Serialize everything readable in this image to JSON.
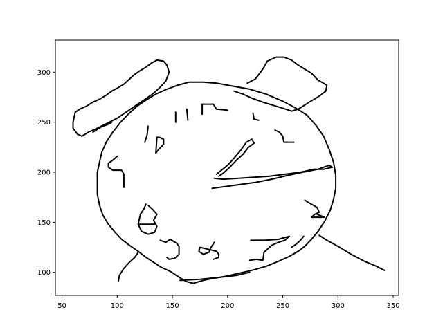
{
  "chart_data": {
    "type": "line",
    "title": "",
    "xlabel": "",
    "ylabel": "",
    "xlim": [
      44,
      355
    ],
    "ylim": [
      77,
      332
    ],
    "xticks": [
      50,
      100,
      150,
      200,
      250,
      300,
      350
    ],
    "yticks": [
      100,
      150,
      200,
      250,
      300
    ],
    "xtick_labels": [
      "50",
      "100",
      "150",
      "200",
      "250",
      "300",
      "350"
    ],
    "ytick_labels": [
      "100",
      "150",
      "200",
      "250",
      "300"
    ],
    "grid": false,
    "line_color": "#000000",
    "series": [
      {
        "points": [
          [
            165,
            290
          ],
          [
            178,
            290
          ],
          [
            190,
            289
          ],
          [
            205,
            286
          ],
          [
            220,
            283
          ],
          [
            235,
            278
          ],
          [
            250,
            271
          ],
          [
            262,
            264
          ],
          [
            272,
            257
          ],
          [
            280,
            247
          ],
          [
            287,
            236
          ],
          [
            292,
            223
          ],
          [
            296,
            210
          ],
          [
            298,
            197
          ],
          [
            298,
            184
          ],
          [
            296,
            173
          ],
          [
            293,
            162
          ],
          [
            288,
            151
          ],
          [
            282,
            141
          ],
          [
            276,
            133
          ],
          [
            270,
            126
          ],
          [
            264,
            121
          ],
          [
            256,
            116
          ],
          [
            246,
            111
          ],
          [
            235,
            106
          ],
          [
            222,
            102
          ],
          [
            210,
            99
          ],
          [
            198,
            96
          ],
          [
            187,
            94
          ],
          [
            178,
            92
          ],
          [
            169,
            89
          ],
          [
            162,
            91
          ],
          [
            155,
            96
          ],
          [
            148,
            101
          ],
          [
            140,
            105
          ],
          [
            133,
            110
          ],
          [
            126,
            115
          ],
          [
            119,
            121
          ],
          [
            111,
            127
          ],
          [
            104,
            133
          ],
          [
            98,
            140
          ],
          [
            92,
            148
          ],
          [
            87,
            157
          ],
          [
            84,
            167
          ],
          [
            82,
            178
          ],
          [
            82,
            190
          ],
          [
            82,
            200
          ],
          [
            84,
            210
          ],
          [
            86,
            220
          ],
          [
            90,
            230
          ],
          [
            96,
            240
          ],
          [
            103,
            250
          ],
          [
            110,
            258
          ],
          [
            118,
            266
          ],
          [
            126,
            272
          ],
          [
            135,
            278
          ],
          [
            145,
            283
          ],
          [
            155,
            287
          ],
          [
            165,
            290
          ]
        ]
      },
      {
        "points": [
          [
            61,
            255
          ],
          [
            62,
            260
          ],
          [
            66,
            263
          ],
          [
            72,
            266
          ],
          [
            78,
            270
          ],
          [
            84,
            273
          ],
          [
            90,
            277
          ],
          [
            95,
            281
          ],
          [
            100,
            284
          ],
          [
            106,
            288
          ],
          [
            110,
            292
          ],
          [
            115,
            297
          ],
          [
            120,
            301
          ],
          [
            126,
            305
          ],
          [
            131,
            309
          ],
          [
            136,
            312
          ],
          [
            142,
            311
          ],
          [
            145,
            307
          ],
          [
            147,
            300
          ],
          [
            144,
            291
          ],
          [
            138,
            284
          ],
          [
            132,
            278
          ],
          [
            124,
            272
          ],
          [
            116,
            266
          ],
          [
            108,
            260
          ],
          [
            100,
            254
          ],
          [
            91,
            249
          ],
          [
            82,
            244
          ],
          [
            74,
            240
          ],
          [
            68,
            236
          ],
          [
            64,
            238
          ],
          [
            60,
            244
          ],
          [
            60,
            250
          ],
          [
            61,
            255
          ]
        ]
      },
      {
        "points": [
          [
            78,
            240
          ],
          [
            85,
            245
          ],
          [
            92,
            248
          ],
          [
            95,
            250
          ]
        ]
      },
      {
        "points": [
          [
            218,
            289
          ],
          [
            225,
            293
          ],
          [
            230,
            300
          ],
          [
            233,
            305
          ],
          [
            236,
            311
          ],
          [
            240,
            313
          ],
          [
            244,
            315
          ],
          [
            251,
            315
          ],
          [
            258,
            312
          ],
          [
            264,
            307
          ],
          [
            270,
            303
          ],
          [
            276,
            299
          ],
          [
            282,
            292
          ],
          [
            290,
            287
          ],
          [
            289,
            281
          ],
          [
            283,
            276
          ],
          [
            274,
            270
          ],
          [
            264,
            263
          ],
          [
            258,
            261
          ],
          [
            250,
            264
          ],
          [
            241,
            267
          ],
          [
            232,
            270
          ],
          [
            222,
            274
          ],
          [
            214,
            278
          ],
          [
            206,
            281
          ]
        ]
      },
      {
        "points": [
          [
            153,
            260
          ],
          [
            153,
            250
          ]
        ]
      },
      {
        "points": [
          [
            163,
            263
          ],
          [
            164,
            252
          ]
        ]
      },
      {
        "points": [
          [
            177,
            268
          ],
          [
            187,
            268
          ],
          [
            190,
            263
          ],
          [
            200,
            262
          ]
        ]
      },
      {
        "points": [
          [
            177,
            268
          ],
          [
            177,
            258
          ]
        ]
      },
      {
        "points": [
          [
            223,
            259
          ],
          [
            224,
            253
          ],
          [
            228,
            252
          ]
        ]
      },
      {
        "points": [
          [
            243,
            242
          ],
          [
            247,
            240
          ],
          [
            250,
            236
          ],
          [
            251,
            230
          ],
          [
            260,
            230
          ]
        ]
      },
      {
        "points": [
          [
            128,
            246
          ],
          [
            127,
            237
          ],
          [
            125,
            230
          ]
        ]
      },
      {
        "points": [
          [
            136,
            235
          ],
          [
            135,
            219
          ],
          [
            137,
            222
          ],
          [
            142,
            228
          ],
          [
            142,
            233
          ],
          [
            138,
            235
          ],
          [
            136,
            235
          ]
        ]
      },
      {
        "points": [
          [
            100,
            216
          ],
          [
            96,
            212
          ],
          [
            92,
            209
          ],
          [
            92,
            205
          ],
          [
            96,
            202
          ],
          [
            104,
            202
          ],
          [
            106,
            198
          ],
          [
            106,
            185
          ]
        ]
      },
      {
        "points": [
          [
            190,
            198
          ],
          [
            200,
            207
          ],
          [
            205,
            213
          ],
          [
            212,
            222
          ],
          [
            217,
            230
          ],
          [
            222,
            233
          ],
          [
            224,
            229
          ],
          [
            219,
            225
          ],
          [
            214,
            218
          ],
          [
            208,
            212
          ],
          [
            202,
            205
          ],
          [
            196,
            199
          ],
          [
            192,
            196
          ]
        ]
      },
      {
        "points": [
          [
            186,
            184
          ],
          [
            200,
            186
          ],
          [
            213,
            188
          ],
          [
            226,
            190
          ],
          [
            240,
            193
          ],
          [
            255,
            197
          ],
          [
            268,
            200
          ],
          [
            282,
            203
          ],
          [
            292,
            207
          ],
          [
            295,
            205
          ],
          [
            287,
            203
          ],
          [
            278,
            203
          ],
          [
            266,
            200
          ],
          [
            252,
            198
          ],
          [
            238,
            196
          ],
          [
            224,
            195
          ],
          [
            210,
            194
          ],
          [
            196,
            193
          ],
          [
            188,
            194
          ]
        ]
      },
      {
        "points": [
          [
            126,
            168
          ],
          [
            124,
            163
          ],
          [
            121,
            158
          ],
          [
            119,
            148
          ],
          [
            122,
            141
          ],
          [
            128,
            138
          ],
          [
            134,
            140
          ],
          [
            136,
            146
          ],
          [
            133,
            152
          ],
          [
            136,
            158
          ],
          [
            132,
            163
          ],
          [
            128,
            167
          ]
        ]
      },
      {
        "points": [
          [
            119,
            148
          ],
          [
            134,
            148
          ]
        ]
      },
      {
        "points": [
          [
            139,
            132
          ],
          [
            144,
            130
          ],
          [
            148,
            133
          ],
          [
            151,
            131
          ],
          [
            154,
            129
          ],
          [
            156,
            126
          ],
          [
            156,
            118
          ],
          [
            152,
            114
          ],
          [
            147,
            113
          ],
          [
            145,
            115
          ]
        ]
      },
      {
        "points": [
          [
            188,
            130
          ],
          [
            185,
            125
          ],
          [
            183,
            120
          ],
          [
            178,
            118
          ],
          [
            174,
            121
          ],
          [
            175,
            125
          ],
          [
            190,
            121
          ],
          [
            192,
            118
          ],
          [
            192,
            115
          ],
          [
            187,
            113
          ]
        ]
      },
      {
        "points": [
          [
            221,
            132
          ],
          [
            233,
            132
          ],
          [
            246,
            133
          ],
          [
            256,
            136
          ],
          [
            252,
            132
          ],
          [
            246,
            130
          ],
          [
            240,
            127
          ],
          [
            233,
            120
          ],
          [
            232,
            112
          ],
          [
            226,
            113
          ],
          [
            220,
            112
          ]
        ]
      },
      {
        "points": [
          [
            270,
            172
          ],
          [
            276,
            168
          ],
          [
            281,
            165
          ],
          [
            283,
            160
          ],
          [
            279,
            158
          ],
          [
            276,
            155
          ],
          [
            285,
            155
          ],
          [
            288,
            155
          ],
          [
            281,
            158
          ]
        ]
      },
      {
        "points": [
          [
            269,
            136
          ],
          [
            266,
            132
          ],
          [
            262,
            128
          ],
          [
            258,
            125
          ]
        ]
      },
      {
        "points": [
          [
            283,
            137
          ],
          [
            290,
            132
          ],
          [
            300,
            126
          ],
          [
            312,
            118
          ],
          [
            324,
            111
          ],
          [
            335,
            106
          ],
          [
            342,
            102
          ]
        ]
      },
      {
        "points": [
          [
            119,
            120
          ],
          [
            116,
            115
          ],
          [
            111,
            110
          ],
          [
            106,
            104
          ],
          [
            102,
            97
          ],
          [
            101,
            91
          ]
        ]
      },
      {
        "points": [
          [
            157,
            92
          ],
          [
            175,
            93
          ],
          [
            192,
            95
          ],
          [
            208,
            97
          ],
          [
            220,
            100
          ]
        ]
      }
    ]
  }
}
